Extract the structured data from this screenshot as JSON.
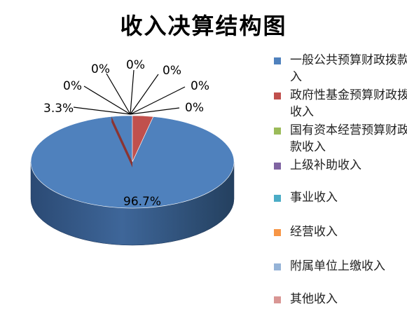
{
  "chart_data": {
    "type": "pie",
    "title": "收入决算结构图",
    "series": [
      {
        "name": "一般公共预算财政拨款收入",
        "value": 96.7,
        "label": "96.7%",
        "color": "#4F81BD"
      },
      {
        "name": "政府性基金预算财政拨款收入",
        "value": 3.3,
        "label": "3.3%",
        "color": "#C0504D"
      },
      {
        "name": "国有资本经营预算财政拨款收入",
        "value": 0,
        "label": "0%",
        "color": "#9BBB59"
      },
      {
        "name": "上级补助收入",
        "value": 0,
        "label": "0%",
        "color": "#8064A2"
      },
      {
        "name": "事业收入",
        "value": 0,
        "label": "0%",
        "color": "#4BACC6"
      },
      {
        "name": "经营收入",
        "value": 0,
        "label": "0%",
        "color": "#F79646"
      },
      {
        "name": "附属单位上缴收入",
        "value": 0,
        "label": "0%",
        "color": "#95B3D7"
      },
      {
        "name": "其他收入",
        "value": 0,
        "label": "0%",
        "color": "#D99694"
      }
    ],
    "legend_position": "right"
  }
}
